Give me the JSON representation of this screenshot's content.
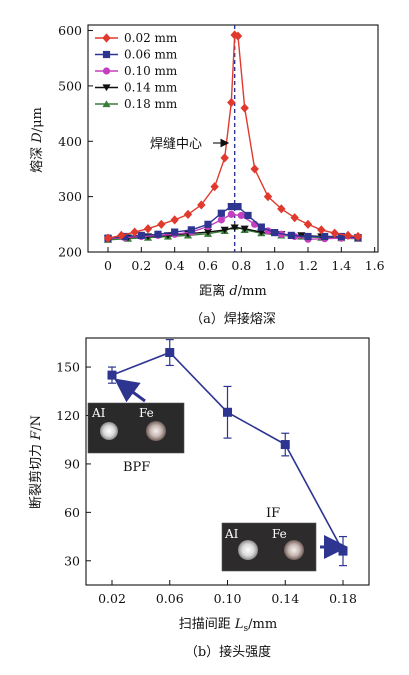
{
  "chart_data": [
    {
      "type": "line",
      "caption": "（a）焊接熔深",
      "xlabel_main": "距离 ",
      "xlabel_sym": "d",
      "xlabel_unit": "/mm",
      "ylabel_main": "熔深 ",
      "ylabel_sym": "D",
      "ylabel_unit": "/μm",
      "xlim": [
        -0.12,
        1.62
      ],
      "ylim": [
        200,
        610
      ],
      "xticks": [
        "0",
        "0.2",
        "0.4",
        "0.6",
        "0.8",
        "1.0",
        "1.2",
        "1.4",
        "1.6"
      ],
      "yticks": [
        "200",
        "300",
        "400",
        "500",
        "600"
      ],
      "center_line_x": 0.76,
      "annotation": "焊缝中心",
      "legend_position": "top-left",
      "series": [
        {
          "name": "0.02 mm",
          "color": "#e03a2e",
          "marker": "diamond",
          "x": [
            0,
            0.08,
            0.16,
            0.24,
            0.32,
            0.4,
            0.48,
            0.56,
            0.64,
            0.7,
            0.74,
            0.76,
            0.78,
            0.82,
            0.88,
            0.96,
            1.04,
            1.12,
            1.2,
            1.28,
            1.36,
            1.44,
            1.5
          ],
          "y": [
            225,
            230,
            236,
            242,
            250,
            258,
            268,
            285,
            318,
            370,
            470,
            592,
            590,
            460,
            350,
            300,
            278,
            262,
            250,
            240,
            234,
            230,
            228
          ]
        },
        {
          "name": "0.06 mm",
          "color": "#2d3590",
          "marker": "square",
          "x": [
            0,
            0.1,
            0.2,
            0.3,
            0.4,
            0.5,
            0.6,
            0.68,
            0.74,
            0.78,
            0.84,
            0.92,
            1.0,
            1.1,
            1.2,
            1.3,
            1.4,
            1.5
          ],
          "y": [
            225,
            228,
            230,
            232,
            236,
            240,
            250,
            270,
            282,
            282,
            266,
            245,
            235,
            230,
            228,
            228,
            228,
            226
          ]
        },
        {
          "name": "0.10 mm",
          "color": "#c43fbf",
          "marker": "circle",
          "x": [
            0,
            0.1,
            0.2,
            0.3,
            0.4,
            0.5,
            0.6,
            0.68,
            0.74,
            0.8,
            0.88,
            0.96,
            1.04,
            1.12,
            1.2,
            1.3,
            1.4,
            1.5
          ],
          "y": [
            224,
            226,
            228,
            230,
            232,
            236,
            246,
            258,
            268,
            266,
            250,
            238,
            232,
            228,
            223,
            224,
            225,
            225
          ]
        },
        {
          "name": "0.14 mm",
          "color": "#111111",
          "marker": "triangle-down",
          "x": [
            0,
            0.12,
            0.24,
            0.36,
            0.48,
            0.6,
            0.7,
            0.76,
            0.82,
            0.92,
            1.04,
            1.16,
            1.28,
            1.4,
            1.5
          ],
          "y": [
            224,
            226,
            228,
            230,
            233,
            236,
            240,
            244,
            242,
            236,
            232,
            230,
            228,
            227,
            226
          ]
        },
        {
          "name": "0.18 mm",
          "color": "#3a7d3a",
          "marker": "triangle-up",
          "x": [
            0,
            0.12,
            0.24,
            0.36,
            0.48,
            0.6,
            0.7,
            0.76,
            0.82,
            0.92,
            1.04,
            1.16,
            1.28,
            1.4,
            1.5
          ],
          "y": [
            222,
            224,
            226,
            228,
            230,
            233,
            238,
            246,
            240,
            234,
            230,
            228,
            226,
            225,
            224
          ]
        }
      ]
    },
    {
      "type": "line",
      "caption": "（b）接头强度",
      "xlabel_main": "扫描间距 ",
      "xlabel_sym": "L",
      "xlabel_sub": "s",
      "xlabel_unit": "/mm",
      "ylabel_main": "断裂剪切力 ",
      "ylabel_sym": "F",
      "ylabel_unit": "/N",
      "ylim": [
        15,
        168
      ],
      "categories": [
        "0.02",
        "0.06",
        "0.10",
        "0.14",
        "0.18"
      ],
      "yticks": [
        "30",
        "60",
        "90",
        "120",
        "150"
      ],
      "color": "#2d3590",
      "series": [
        {
          "values": [
            145,
            159,
            122,
            102,
            36
          ],
          "error": [
            5,
            8,
            16,
            7,
            9
          ]
        }
      ],
      "annotations": [
        "BPF",
        "IF"
      ],
      "inset_labels": [
        "AI",
        "Fe"
      ]
    }
  ]
}
